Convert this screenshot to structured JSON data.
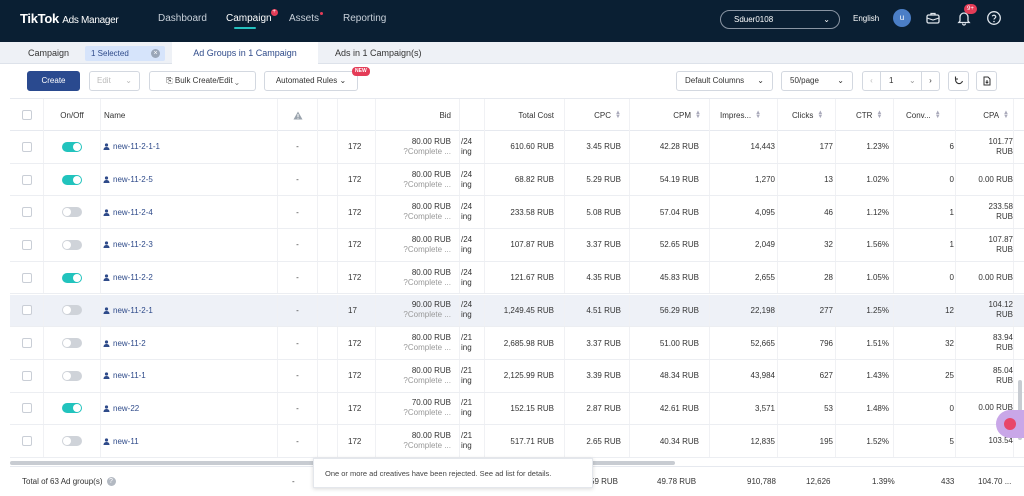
{
  "topbar": {
    "logo_main": "TikTok",
    "logo_sub": "Ads Manager",
    "nav": {
      "dashboard": "Dashboard",
      "campaign": "Campaign",
      "campaign_badge": "+",
      "assets": "Assets",
      "reporting": "Reporting"
    },
    "account": "Sduer0108",
    "language": "English",
    "avatar_letter": "u",
    "notif_badge": "9+",
    "icons": [
      "briefcase-icon",
      "bell-icon",
      "help-icon"
    ]
  },
  "tabs": {
    "campaign": "Campaign",
    "selected": "1 Selected",
    "adgroups": "Ad Groups in 1 Campaign",
    "ads": "Ads in 1 Campaign(s)"
  },
  "toolbar": {
    "create": "Create",
    "edit": "Edit",
    "bulk": "Bulk Create/Edit",
    "rules": "Automated Rules",
    "new_tag": "NEW",
    "columns": "Default Columns",
    "per_page": "50/page",
    "page": "1"
  },
  "headers": {
    "onoff": "On/Off",
    "name": "Name",
    "bid": "Bid",
    "total_cost": "Total Cost",
    "cpc": "CPC",
    "cpm": "CPM",
    "impressions": "Impres...",
    "clicks": "Clicks",
    "ctr": "CTR",
    "conv": "Conv...",
    "cpa": "CPA"
  },
  "rows": [
    {
      "on": true,
      "name": "new-11-2-1-1",
      "dash": "-",
      "id": "172",
      "bid": "80.00 RUB",
      "bid_sub": "Complete ...",
      "date_top": "/24",
      "date_bot": "ing",
      "cost": "610.60 RUB",
      "cpc": "3.45 RUB",
      "cpm": "42.28 RUB",
      "impr": "14,443",
      "clicks": "177",
      "ctr": "1.23%",
      "conv": "6",
      "cpa1": "101.77",
      "cpa2": "RUB"
    },
    {
      "on": true,
      "name": "new-11-2-5",
      "dash": "-",
      "id": "172",
      "bid": "80.00 RUB",
      "bid_sub": "Complete ...",
      "date_top": "/24",
      "date_bot": "ing",
      "cost": "68.82 RUB",
      "cpc": "5.29 RUB",
      "cpm": "54.19 RUB",
      "impr": "1,270",
      "clicks": "13",
      "ctr": "1.02%",
      "conv": "0",
      "cpa1": "0.00 RUB",
      "cpa2": ""
    },
    {
      "on": false,
      "name": "new-11-2-4",
      "dash": "-",
      "id": "172",
      "bid": "80.00 RUB",
      "bid_sub": "Complete ...",
      "date_top": "/24",
      "date_bot": "ing",
      "cost": "233.58 RUB",
      "cpc": "5.08 RUB",
      "cpm": "57.04 RUB",
      "impr": "4,095",
      "clicks": "46",
      "ctr": "1.12%",
      "conv": "1",
      "cpa1": "233.58",
      "cpa2": "RUB"
    },
    {
      "on": false,
      "name": "new-11-2-3",
      "dash": "-",
      "id": "172",
      "bid": "80.00 RUB",
      "bid_sub": "Complete ...",
      "date_top": "/24",
      "date_bot": "ing",
      "cost": "107.87 RUB",
      "cpc": "3.37 RUB",
      "cpm": "52.65 RUB",
      "impr": "2,049",
      "clicks": "32",
      "ctr": "1.56%",
      "conv": "1",
      "cpa1": "107.87",
      "cpa2": "RUB"
    },
    {
      "on": true,
      "name": "new-11-2-2",
      "dash": "-",
      "id": "172",
      "bid": "80.00 RUB",
      "bid_sub": "Complete ...",
      "date_top": "/24",
      "date_bot": "ing",
      "cost": "121.67 RUB",
      "cpc": "4.35 RUB",
      "cpm": "45.83 RUB",
      "impr": "2,655",
      "clicks": "28",
      "ctr": "1.05%",
      "conv": "0",
      "cpa1": "0.00 RUB",
      "cpa2": ""
    },
    {
      "on": false,
      "name": "new-11-2-1",
      "dash": "-",
      "id": "17",
      "bid": "90.00 RUB",
      "bid_sub": "Complete ...",
      "date_top": "/24",
      "date_bot": "ing",
      "cost": "1,249.45 RUB",
      "cpc": "4.51 RUB",
      "cpm": "56.29 RUB",
      "impr": "22,198",
      "clicks": "277",
      "ctr": "1.25%",
      "conv": "12",
      "cpa1": "104.12",
      "cpa2": "RUB",
      "hl": true
    },
    {
      "on": false,
      "name": "new-11-2",
      "dash": "-",
      "id": "172",
      "bid": "80.00 RUB",
      "bid_sub": "Complete ...",
      "date_top": "/21",
      "date_bot": "ing",
      "cost": "2,685.98 RUB",
      "cpc": "3.37 RUB",
      "cpm": "51.00 RUB",
      "impr": "52,665",
      "clicks": "796",
      "ctr": "1.51%",
      "conv": "32",
      "cpa1": "83.94",
      "cpa2": "RUB"
    },
    {
      "on": false,
      "name": "new-11-1",
      "dash": "-",
      "id": "172",
      "bid": "80.00 RUB",
      "bid_sub": "Complete ...",
      "date_top": "/21",
      "date_bot": "ing",
      "cost": "2,125.99 RUB",
      "cpc": "3.39 RUB",
      "cpm": "48.34 RUB",
      "impr": "43,984",
      "clicks": "627",
      "ctr": "1.43%",
      "conv": "25",
      "cpa1": "85.04",
      "cpa2": "RUB"
    },
    {
      "on": true,
      "name": "new-22",
      "dash": "-",
      "id": "172",
      "bid": "70.00 RUB",
      "bid_sub": "Complete ...",
      "date_top": "/21",
      "date_bot": "ing",
      "cost": "152.15 RUB",
      "cpc": "2.87 RUB",
      "cpm": "42.61 RUB",
      "impr": "3,571",
      "clicks": "53",
      "ctr": "1.48%",
      "conv": "0",
      "cpa1": "0.00 RUB",
      "cpa2": ""
    },
    {
      "on": false,
      "name": "new-11",
      "dash": "-",
      "id": "172",
      "bid": "80.00 RUB",
      "bid_sub": "Complete ...",
      "date_top": "/21",
      "date_bot": "ing",
      "cost": "517.71 RUB",
      "cpc": "2.65 RUB",
      "cpm": "40.34 RUB",
      "impr": "12,835",
      "clicks": "195",
      "ctr": "1.52%",
      "conv": "5",
      "cpa1": "103.54",
      "cpa2": ""
    }
  ],
  "footer": {
    "total": "Total of 63 Ad group(s)",
    "dash": "-",
    "cost": "59 RUB",
    "cpm": "49.78 RUB",
    "impr": "910,788",
    "clicks": "12,626",
    "ctr": "1.39%",
    "conv": "433",
    "cpa": "104.70 ..."
  },
  "toast": "One or more ad creatives have been rejected. See ad list for details.",
  "colors": {
    "topbar": "#0a1f33",
    "accent": "#22c3bd",
    "primary": "#2a4a8f",
    "badge": "#e43c57"
  }
}
